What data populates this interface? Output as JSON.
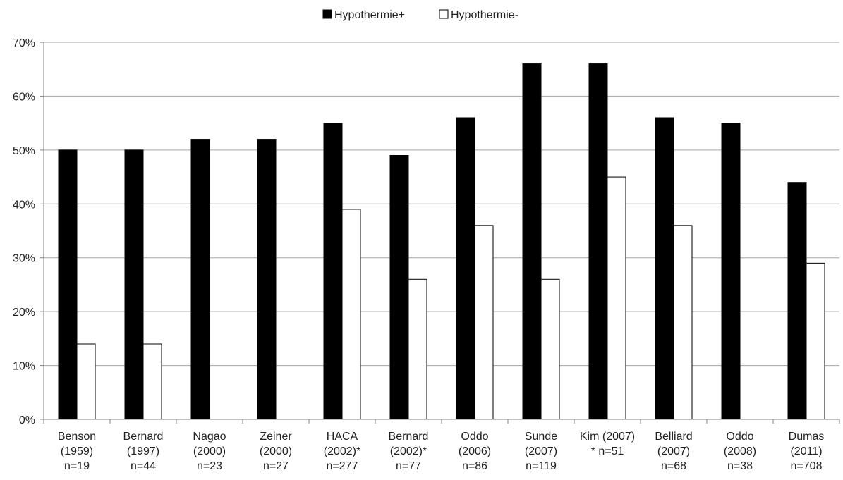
{
  "chart_data": {
    "type": "bar",
    "title": "",
    "xlabel": "",
    "ylabel": "",
    "ylim": [
      0,
      70
    ],
    "ytick_labels": [
      "0%",
      "10%",
      "20%",
      "30%",
      "40%",
      "50%",
      "60%",
      "70%"
    ],
    "grid": true,
    "legend": "top-center",
    "categories": [
      [
        "Benson",
        "(1959)",
        "n=19"
      ],
      [
        "Bernard",
        "(1997)",
        "n=44"
      ],
      [
        "Nagao",
        "(2000)",
        "n=23"
      ],
      [
        "Zeiner",
        "(2000)",
        "n=27"
      ],
      [
        "HACA",
        "(2002)*",
        "n=277"
      ],
      [
        "Bernard",
        "(2002)*",
        "n=77"
      ],
      [
        "Oddo",
        "(2006)",
        "n=86"
      ],
      [
        "Sunde",
        "(2007)",
        "n=119"
      ],
      [
        "Kim (2007)",
        "* n=51"
      ],
      [
        "Belliard",
        "(2007)",
        "n=68"
      ],
      [
        "Oddo",
        "(2008)",
        "n=38"
      ],
      [
        "Dumas",
        "(2011)",
        "n=708"
      ]
    ],
    "series": [
      {
        "name": "Hypothermie+",
        "color": "#000000",
        "values": [
          50,
          50,
          52,
          52,
          55,
          49,
          56,
          66,
          66,
          56,
          55,
          44
        ]
      },
      {
        "name": "Hypothermie-",
        "color": "#ffffff",
        "values": [
          14,
          14,
          null,
          null,
          39,
          26,
          36,
          26,
          45,
          36,
          null,
          29
        ]
      }
    ]
  }
}
